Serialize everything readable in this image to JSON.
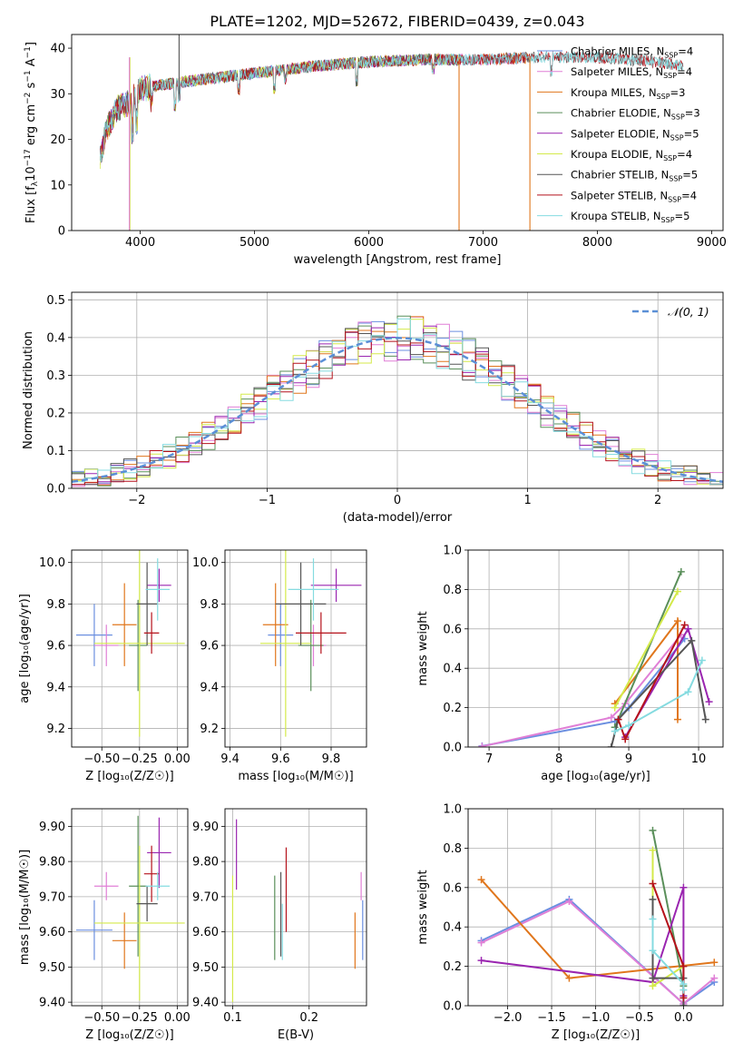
{
  "figure": {
    "title": "PLATE=1202, MJD=52672, FIBERID=0439, z=0.043"
  },
  "colors": {
    "Chabrier MILES": "#6b8fe0",
    "Salpeter MILES": "#e07fd6",
    "Kroupa MILES": "#e0761c",
    "Chabrier ELODIE": "#5a8f5a",
    "Salpeter ELODIE": "#9a25b0",
    "Kroupa ELODIE": "#d4ea4a",
    "Chabrier STELIB": "#555555",
    "Salpeter STELIB": "#b5121b",
    "Kroupa STELIB": "#85dbe0",
    "normal_curve": "#5b8fd6",
    "grid": "#b0b0b0"
  },
  "chart_data": [
    {
      "id": "spectrum",
      "type": "line",
      "title": "PLATE=1202, MJD=52672, FIBERID=0439, z=0.043",
      "xlabel": "wavelength [Angstrom, rest frame]",
      "ylabel_parts": [
        "Flux [f",
        "λ",
        "10",
        "−17",
        " erg cm",
        "−2",
        " s",
        "−1",
        " A",
        "−1",
        "]"
      ],
      "xlim": [
        3400,
        9100
      ],
      "ylim": [
        0,
        43
      ],
      "xticks": [
        4000,
        5000,
        6000,
        7000,
        8000,
        9000
      ],
      "yticks": [
        0,
        10,
        20,
        30,
        40
      ],
      "grid": false,
      "legend_position": "top-right",
      "series": [
        {
          "name": "Chabrier MILES",
          "nssp": "4"
        },
        {
          "name": "Salpeter MILES",
          "nssp": "4"
        },
        {
          "name": "Kroupa MILES",
          "nssp": "3"
        },
        {
          "name": "Chabrier ELODIE",
          "nssp": "3"
        },
        {
          "name": "Salpeter ELODIE",
          "nssp": "5"
        },
        {
          "name": "Kroupa ELODIE",
          "nssp": "4"
        },
        {
          "name": "Chabrier STELIB",
          "nssp": "5"
        },
        {
          "name": "Salpeter STELIB",
          "nssp": "4"
        },
        {
          "name": "Kroupa STELIB",
          "nssp": "5"
        }
      ],
      "continuum": {
        "x": [
          3650,
          3700,
          3800,
          3900,
          4000,
          4200,
          4500,
          5000,
          5500,
          6000,
          6500,
          7000,
          7500,
          8000,
          8500,
          8800
        ],
        "y": [
          16,
          22,
          27,
          28,
          31,
          32,
          33,
          34.5,
          36,
          37,
          37.5,
          37.5,
          38,
          38,
          37,
          36
        ]
      },
      "spectral_ranges": {
        "MILES": [
          3650,
          7400
        ],
        "ELODIE": [
          3650,
          6800
        ],
        "STELIB": [
          3650,
          8750
        ]
      }
    },
    {
      "id": "residuals",
      "type": "histogram",
      "xlabel": "(data-model)/error",
      "ylabel": "Normed distribution",
      "xlim": [
        -2.5,
        2.5
      ],
      "ylim": [
        0,
        0.52
      ],
      "xticks": [
        -2,
        -1,
        0,
        1,
        2
      ],
      "yticks": [
        0.0,
        0.1,
        0.2,
        0.3,
        0.4,
        0.5
      ],
      "grid": true,
      "legend_position": "top-right",
      "reference_curve": {
        "name": "𝒩(0, 1)",
        "style": "dashed"
      },
      "bin_width": 0.1
    },
    {
      "id": "age_vs_Z",
      "type": "scatter",
      "xlabel": "Z [log₁₀(Z/Z☉)]",
      "ylabel": "age  [log₁₀(age/yr)]",
      "xlim": [
        -0.7,
        0.07
      ],
      "ylim": [
        9.11,
        10.06
      ],
      "xticks": [
        -0.5,
        -0.25,
        0.0
      ],
      "yticks": [
        9.2,
        9.4,
        9.6,
        9.8,
        10.0
      ],
      "grid": true,
      "points": [
        {
          "series": "Chabrier MILES",
          "x": -0.55,
          "xerr": 0.12,
          "y": 9.65,
          "yerr": 0.15
        },
        {
          "series": "Salpeter MILES",
          "x": -0.47,
          "xerr": 0.08,
          "y": 9.6,
          "yerr": 0.1
        },
        {
          "series": "Kroupa MILES",
          "x": -0.35,
          "xerr": 0.08,
          "y": 9.7,
          "yerr": 0.2
        },
        {
          "series": "Chabrier ELODIE",
          "x": -0.26,
          "xerr": 0.06,
          "y": 9.6,
          "yerr": 0.22
        },
        {
          "series": "Salpeter ELODIE",
          "x": -0.12,
          "xerr": 0.08,
          "y": 9.89,
          "yerr": 0.08
        },
        {
          "series": "Kroupa ELODIE",
          "x": -0.25,
          "xerr": 0.3,
          "y": 9.61,
          "yerr": 0.45
        },
        {
          "series": "Chabrier STELIB",
          "x": -0.2,
          "xerr": 0.07,
          "y": 9.8,
          "yerr": 0.2
        },
        {
          "series": "Salpeter STELIB",
          "x": -0.17,
          "xerr": 0.05,
          "y": 9.66,
          "yerr": 0.1
        },
        {
          "series": "Kroupa STELIB",
          "x": -0.13,
          "xerr": 0.08,
          "y": 9.87,
          "yerr": 0.15
        }
      ]
    },
    {
      "id": "age_vs_mass",
      "type": "scatter",
      "xlabel": "mass [log₁₀(M/M☉)]",
      "ylabel": "",
      "xlim": [
        9.38,
        9.94
      ],
      "ylim": [
        9.11,
        10.06
      ],
      "xticks": [
        9.4,
        9.6,
        9.8
      ],
      "yticks": [
        9.2,
        9.4,
        9.6,
        9.8,
        10.0
      ],
      "grid": true,
      "points": [
        {
          "series": "Chabrier MILES",
          "x": 9.6,
          "xerr": 0.05,
          "y": 9.65,
          "yerr": 0.15
        },
        {
          "series": "Salpeter MILES",
          "x": 9.73,
          "xerr": 0.05,
          "y": 9.6,
          "yerr": 0.1
        },
        {
          "series": "Kroupa MILES",
          "x": 9.58,
          "xerr": 0.05,
          "y": 9.7,
          "yerr": 0.2
        },
        {
          "series": "Chabrier ELODIE",
          "x": 9.72,
          "xerr": 0.05,
          "y": 9.6,
          "yerr": 0.22
        },
        {
          "series": "Salpeter ELODIE",
          "x": 9.82,
          "xerr": 0.1,
          "y": 9.89,
          "yerr": 0.08
        },
        {
          "series": "Kroupa ELODIE",
          "x": 9.62,
          "xerr": 0.1,
          "y": 9.61,
          "yerr": 0.45
        },
        {
          "series": "Chabrier STELIB",
          "x": 9.68,
          "xerr": 0.1,
          "y": 9.8,
          "yerr": 0.2
        },
        {
          "series": "Salpeter STELIB",
          "x": 9.76,
          "xerr": 0.1,
          "y": 9.66,
          "yerr": 0.1
        },
        {
          "series": "Kroupa STELIB",
          "x": 9.73,
          "xerr": 0.1,
          "y": 9.87,
          "yerr": 0.15
        }
      ]
    },
    {
      "id": "weight_vs_age",
      "type": "line",
      "xlabel": "age  [log₁₀(age/yr)]",
      "ylabel": "mass weight",
      "xlim": [
        6.7,
        10.35
      ],
      "ylim": [
        0,
        1.0
      ],
      "xticks": [
        7,
        8,
        9,
        10
      ],
      "yticks": [
        0.0,
        0.2,
        0.4,
        0.6,
        0.8,
        1.0
      ],
      "grid": true,
      "series": [
        {
          "name": "Chabrier MILES",
          "x": [
            6.9,
            8.8,
            9.0,
            9.8
          ],
          "y": [
            0.005,
            0.13,
            0.2,
            0.55
          ]
        },
        {
          "name": "Salpeter MILES",
          "x": [
            6.9,
            8.75,
            8.95,
            9.75
          ],
          "y": [
            0.003,
            0.15,
            0.22,
            0.57
          ]
        },
        {
          "name": "Kroupa MILES",
          "x": [
            8.8,
            9.7,
            9.7
          ],
          "y": [
            0.22,
            0.64,
            0.14
          ]
        },
        {
          "name": "Chabrier ELODIE",
          "x": [
            8.8,
            9.75
          ],
          "y": [
            0.1,
            0.89
          ]
        },
        {
          "name": "Salpeter ELODIE",
          "x": [
            8.95,
            9.85,
            10.15
          ],
          "y": [
            0.05,
            0.6,
            0.23
          ]
        },
        {
          "name": "Kroupa ELODIE",
          "x": [
            8.8,
            9.7
          ],
          "y": [
            0.2,
            0.79
          ]
        },
        {
          "name": "Chabrier STELIB",
          "x": [
            8.75,
            8.85,
            9.9,
            10.1
          ],
          "y": [
            0.0,
            0.14,
            0.54,
            0.14
          ]
        },
        {
          "name": "Salpeter STELIB",
          "x": [
            8.85,
            8.95,
            9.8
          ],
          "y": [
            0.14,
            0.04,
            0.62
          ]
        },
        {
          "name": "Kroupa STELIB",
          "x": [
            8.8,
            9.0,
            9.85,
            10.05
          ],
          "y": [
            0.08,
            0.11,
            0.28,
            0.44
          ]
        }
      ]
    },
    {
      "id": "mass_vs_Z",
      "type": "scatter",
      "xlabel": "Z [log₁₀(Z/Z☉)]",
      "ylabel": "mass [log₁₀(M/M☉)]",
      "xlim": [
        -0.7,
        0.07
      ],
      "ylim": [
        9.39,
        9.95
      ],
      "xticks": [
        -0.5,
        -0.25,
        0.0
      ],
      "yticks": [
        9.4,
        9.5,
        9.6,
        9.7,
        9.8,
        9.9
      ],
      "grid": true,
      "points": [
        {
          "series": "Chabrier MILES",
          "x": -0.55,
          "xerr": 0.12,
          "y": 9.605,
          "yerr": 0.085
        },
        {
          "series": "Salpeter MILES",
          "x": -0.47,
          "xerr": 0.08,
          "y": 9.73,
          "yerr": 0.04
        },
        {
          "series": "Kroupa MILES",
          "x": -0.35,
          "xerr": 0.08,
          "y": 9.575,
          "yerr": 0.08
        },
        {
          "series": "Chabrier ELODIE",
          "x": -0.26,
          "xerr": 0.06,
          "y": 9.73,
          "yerr": 0.2
        },
        {
          "series": "Salpeter ELODIE",
          "x": -0.12,
          "xerr": 0.08,
          "y": 9.825,
          "yerr": 0.1
        },
        {
          "series": "Kroupa ELODIE",
          "x": -0.25,
          "xerr": 0.3,
          "y": 9.625,
          "yerr": 0.22
        },
        {
          "series": "Chabrier STELIB",
          "x": -0.2,
          "xerr": 0.07,
          "y": 9.68,
          "yerr": 0.05
        },
        {
          "series": "Salpeter STELIB",
          "x": -0.17,
          "xerr": 0.05,
          "y": 9.765,
          "yerr": 0.08
        },
        {
          "series": "Kroupa STELIB",
          "x": -0.13,
          "xerr": 0.08,
          "y": 9.73,
          "yerr": 0.04
        }
      ]
    },
    {
      "id": "mass_vs_EBV",
      "type": "scatter",
      "xlabel": "E(B-V)",
      "ylabel": "",
      "xlim": [
        0.09,
        0.275
      ],
      "ylim": [
        9.39,
        9.95
      ],
      "xticks": [
        0.1,
        0.2
      ],
      "yticks": [
        9.4,
        9.5,
        9.6,
        9.7,
        9.8,
        9.9
      ],
      "grid": true,
      "points": [
        {
          "series": "Chabrier MILES",
          "x": 0.27,
          "xerr": 0,
          "y": 9.605,
          "yerr": 0.085
        },
        {
          "series": "Salpeter MILES",
          "x": 0.268,
          "xerr": 0,
          "y": 9.73,
          "yerr": 0.04
        },
        {
          "series": "Kroupa MILES",
          "x": 0.26,
          "xerr": 0,
          "y": 9.575,
          "yerr": 0.08
        },
        {
          "series": "Chabrier ELODIE",
          "x": 0.155,
          "xerr": 0,
          "y": 9.64,
          "yerr": 0.12
        },
        {
          "series": "Salpeter ELODIE",
          "x": 0.105,
          "xerr": 0,
          "y": 9.82,
          "yerr": 0.1
        },
        {
          "series": "Kroupa ELODIE",
          "x": 0.1,
          "xerr": 0,
          "y": 9.58,
          "yerr": 0.18
        },
        {
          "series": "Chabrier STELIB",
          "x": 0.163,
          "xerr": 0,
          "y": 9.65,
          "yerr": 0.12
        },
        {
          "series": "Salpeter STELIB",
          "x": 0.17,
          "xerr": 0,
          "y": 9.72,
          "yerr": 0.12
        },
        {
          "series": "Kroupa STELIB",
          "x": 0.165,
          "xerr": 0,
          "y": 9.6,
          "yerr": 0.08
        }
      ]
    },
    {
      "id": "weight_vs_Z",
      "type": "line",
      "xlabel": "Z [log₁₀(Z/Z☉)]",
      "ylabel": "mass weight",
      "xlim": [
        -2.45,
        0.45
      ],
      "ylim": [
        0,
        1.0
      ],
      "xticks": [
        -2.0,
        -1.5,
        -1.0,
        -0.5,
        0.0
      ],
      "yticks": [
        0.0,
        0.2,
        0.4,
        0.6,
        0.8,
        1.0
      ],
      "grid": true,
      "series": [
        {
          "name": "Chabrier MILES",
          "x": [
            -2.3,
            -1.3,
            0.0,
            0.35
          ],
          "y": [
            0.33,
            0.54,
            0.01,
            0.12
          ]
        },
        {
          "name": "Salpeter MILES",
          "x": [
            -2.3,
            -1.3,
            0.0,
            0.35
          ],
          "y": [
            0.32,
            0.53,
            0.01,
            0.14
          ]
        },
        {
          "name": "Kroupa MILES",
          "x": [
            -2.3,
            -1.3,
            0.35
          ],
          "y": [
            0.64,
            0.14,
            0.22
          ]
        },
        {
          "name": "Chabrier ELODIE",
          "x": [
            -0.35,
            0.0
          ],
          "y": [
            0.89,
            0.1
          ]
        },
        {
          "name": "Salpeter ELODIE",
          "x": [
            -2.3,
            -0.35,
            0.0,
            0.0
          ],
          "y": [
            0.23,
            0.12,
            0.6,
            0.05
          ]
        },
        {
          "name": "Kroupa ELODIE",
          "x": [
            -0.35,
            -0.35,
            0.0
          ],
          "y": [
            0.79,
            0.1,
            0.2
          ]
        },
        {
          "name": "Chabrier STELIB",
          "x": [
            -0.35,
            -0.35,
            0.0,
            0.0
          ],
          "y": [
            0.54,
            0.14,
            0.14,
            0.0
          ]
        },
        {
          "name": "Salpeter STELIB",
          "x": [
            -0.35,
            0.0,
            0.0
          ],
          "y": [
            0.62,
            0.2,
            0.04
          ]
        },
        {
          "name": "Kroupa STELIB",
          "x": [
            -0.35,
            -0.35,
            0.0,
            0.0
          ],
          "y": [
            0.44,
            0.28,
            0.11,
            0.08
          ]
        }
      ]
    }
  ]
}
